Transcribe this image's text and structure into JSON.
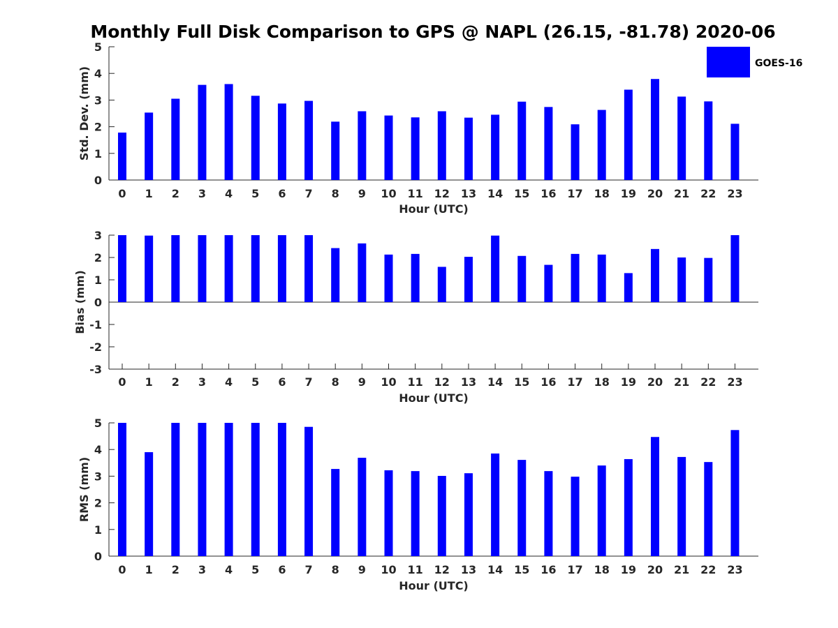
{
  "chart_data": {
    "title": "Monthly Full Disk Comparison to GPS @ NAPL (26.15, -81.78) 2020-06",
    "type": "bar",
    "legend": {
      "label": "GOES-16",
      "color": "#0000ff",
      "placement": "top-right"
    },
    "categories": [
      "0",
      "1",
      "2",
      "3",
      "4",
      "5",
      "6",
      "7",
      "8",
      "9",
      "10",
      "11",
      "12",
      "13",
      "14",
      "15",
      "16",
      "17",
      "18",
      "19",
      "20",
      "21",
      "22",
      "23"
    ],
    "panels": [
      {
        "id": "std",
        "ylabel": "Std. Dev. (mm)",
        "xlabel": "Hour (UTC)",
        "ylim": [
          0,
          5
        ],
        "yticks": [
          0,
          1,
          2,
          3,
          4,
          5
        ],
        "values": [
          1.78,
          2.53,
          3.05,
          3.57,
          3.6,
          3.16,
          2.87,
          2.97,
          2.19,
          2.58,
          2.42,
          2.35,
          2.58,
          2.34,
          2.45,
          2.94,
          2.74,
          2.09,
          2.63,
          3.39,
          3.79,
          3.13,
          2.95,
          2.11
        ]
      },
      {
        "id": "bias",
        "ylabel": "Bias (mm)",
        "xlabel": "Hour (UTC)",
        "ylim": [
          -3,
          3
        ],
        "yticks": [
          -3,
          -2,
          -1,
          0,
          1,
          2,
          3
        ],
        "values": [
          3.0,
          2.98,
          3.0,
          3.0,
          3.0,
          3.0,
          3.0,
          3.0,
          2.42,
          2.63,
          2.13,
          2.16,
          1.58,
          2.03,
          2.98,
          2.07,
          1.67,
          2.16,
          2.13,
          1.3,
          2.38,
          2.0,
          1.98,
          3.0
        ]
      },
      {
        "id": "rms",
        "ylabel": "RMS (mm)",
        "xlabel": "Hour (UTC)",
        "ylim": [
          0,
          5
        ],
        "yticks": [
          0,
          1,
          2,
          3,
          4,
          5
        ],
        "values": [
          5.0,
          3.9,
          5.0,
          5.0,
          5.0,
          5.0,
          5.0,
          4.85,
          3.27,
          3.69,
          3.22,
          3.19,
          3.01,
          3.11,
          3.85,
          3.61,
          3.19,
          2.98,
          3.4,
          3.64,
          4.47,
          3.72,
          3.53,
          4.73
        ]
      }
    ]
  }
}
